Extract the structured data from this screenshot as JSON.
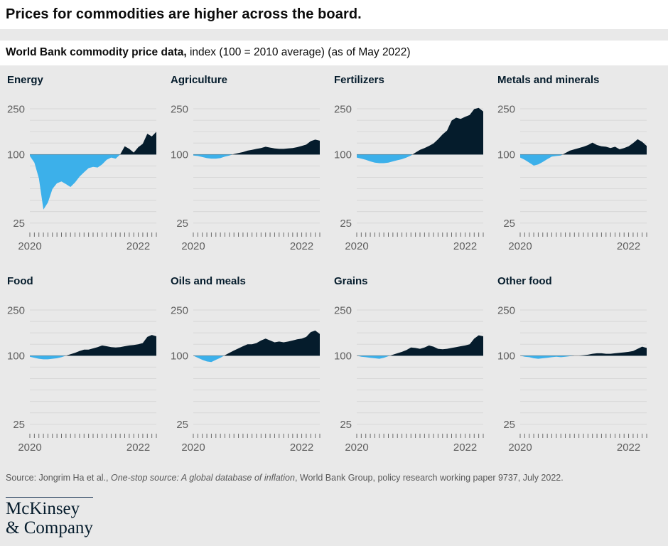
{
  "page": {
    "title": "Prices for commodities are higher across the board.",
    "subtitle_bold": "World Bank commodity price data,",
    "subtitle_rest": " index (100 = 2010 average) (as of May 2022)",
    "source_prefix": "Source: Jongrim Ha et al., ",
    "source_italic": "One-stop source: A global database of inflation",
    "source_suffix": ", World Bank Group, policy research working paper 9737, July 2022.",
    "logo_line1": "McKinsey",
    "logo_line2": "& Company"
  },
  "colors": {
    "background": "#e9e9e9",
    "above_fill": "#051c2c",
    "below_fill": "#3cb0ea",
    "gridline": "#d8d8d8",
    "baseline_line": "#a0a0a0",
    "tick_mark": "#6b6b6b",
    "axis_text": "#5f5f5f"
  },
  "chart_data": {
    "type": "area",
    "unit": "index (100 = 2010 average)",
    "y_scale": "log",
    "y_ticks": [
      25,
      100,
      250
    ],
    "baseline": 100,
    "months_from": "2020-01",
    "months_to": "2022-05",
    "x_labels": [
      {
        "label": "2020",
        "month_index": 0
      },
      {
        "label": "2022",
        "month_index": 24
      }
    ],
    "charts": [
      {
        "title": "Energy",
        "values": [
          97,
          85,
          62,
          33,
          38,
          50,
          56,
          58,
          55,
          52,
          57,
          64,
          70,
          76,
          78,
          77,
          82,
          90,
          94,
          92,
          100,
          118,
          112,
          104,
          116,
          124,
          152,
          144,
          158
        ]
      },
      {
        "title": "Agriculture",
        "values": [
          98,
          97,
          95,
          93,
          92,
          92,
          93,
          96,
          98,
          101,
          103,
          105,
          108,
          110,
          112,
          114,
          117,
          115,
          113,
          112,
          112,
          113,
          114,
          116,
          119,
          122,
          131,
          135,
          132
        ]
      },
      {
        "title": "Fertilizers",
        "values": [
          94,
          92,
          90,
          87,
          85,
          84,
          84,
          85,
          87,
          89,
          91,
          94,
          98,
          104,
          110,
          114,
          119,
          125,
          136,
          150,
          162,
          198,
          210,
          205,
          214,
          222,
          250,
          256,
          238
        ]
      },
      {
        "title": "Metals and minerals",
        "values": [
          94,
          90,
          85,
          80,
          82,
          86,
          91,
          96,
          97,
          98,
          103,
          108,
          111,
          114,
          117,
          121,
          127,
          121,
          118,
          117,
          114,
          117,
          111,
          114,
          118,
          126,
          136,
          129,
          119
        ]
      },
      {
        "title": "Food",
        "values": [
          98,
          96,
          94,
          93,
          93,
          94,
          95,
          97,
          100,
          103,
          106,
          110,
          113,
          113,
          116,
          119,
          123,
          121,
          119,
          118,
          119,
          121,
          123,
          124,
          126,
          129,
          146,
          152,
          148
        ]
      },
      {
        "title": "Oils and meals",
        "values": [
          100,
          96,
          92,
          89,
          88,
          92,
          96,
          101,
          106,
          111,
          116,
          121,
          126,
          126,
          129,
          136,
          141,
          136,
          131,
          133,
          131,
          133,
          136,
          139,
          141,
          146,
          161,
          166,
          155
        ]
      },
      {
        "title": "Grains",
        "values": [
          100,
          98,
          97,
          96,
          95,
          94,
          96,
          99,
          102,
          105,
          108,
          112,
          118,
          117,
          115,
          118,
          123,
          120,
          115,
          114,
          115,
          117,
          119,
          121,
          123,
          126,
          141,
          151,
          148
        ]
      },
      {
        "title": "Other food",
        "values": [
          100,
          98,
          97,
          95,
          94,
          95,
          96,
          97,
          98,
          97,
          98,
          99,
          100,
          100,
          101,
          102,
          104,
          105,
          105,
          104,
          104,
          105,
          106,
          107,
          108,
          110,
          115,
          120,
          117
        ]
      }
    ]
  }
}
